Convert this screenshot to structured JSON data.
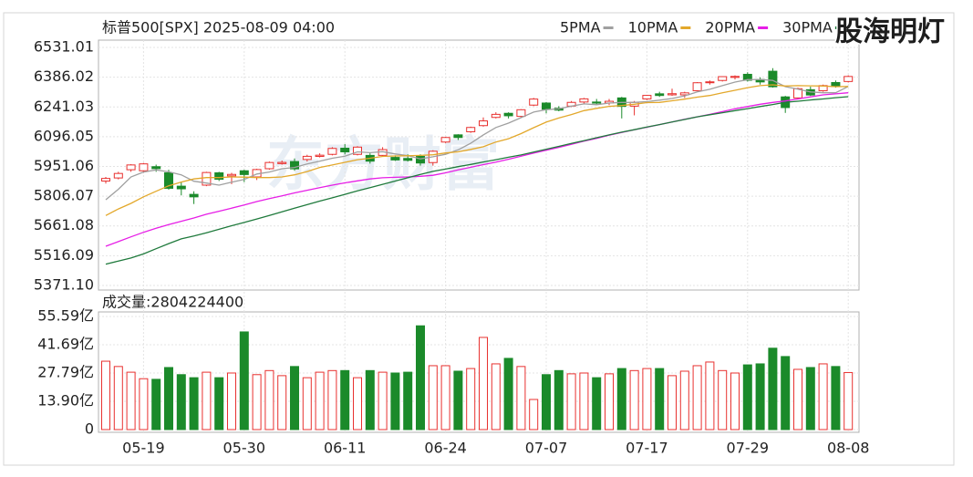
{
  "chart_data": [
    {
      "type": "candlestick",
      "title": "标普500[SPX] 2025-08-09 04:00",
      "watermark": "东方财富",
      "categories": [
        null,
        null,
        null,
        "05-19",
        null,
        null,
        null,
        null,
        null,
        null,
        null,
        "05-30",
        null,
        null,
        null,
        null,
        null,
        null,
        null,
        "06-11",
        null,
        null,
        null,
        null,
        null,
        null,
        null,
        "06-24",
        null,
        null,
        null,
        null,
        null,
        null,
        null,
        "07-07",
        null,
        null,
        null,
        null,
        null,
        null,
        null,
        "07-17",
        null,
        null,
        null,
        null,
        null,
        null,
        null,
        "07-29",
        null,
        null,
        null,
        null,
        null,
        null,
        null,
        "08-08"
      ],
      "open": [
        5880,
        5895,
        5935,
        5930,
        5950,
        5920,
        5855,
        5815,
        5860,
        5920,
        5905,
        5930,
        5900,
        5940,
        5965,
        5975,
        5985,
        6000,
        6010,
        6040,
        6010,
        6005,
        6005,
        5995,
        5990,
        6000,
        5970,
        6070,
        6105,
        6120,
        6150,
        6190,
        6210,
        6195,
        6250,
        6260,
        6235,
        6245,
        6265,
        6265,
        6260,
        6285,
        6245,
        6280,
        6305,
        6300,
        6300,
        6320,
        6360,
        6370,
        6385,
        6400,
        6375,
        6415,
        6290,
        6285,
        6325,
        6320,
        6360,
        6365
      ],
      "high": [
        5900,
        5925,
        5962,
        5968,
        5960,
        5935,
        5875,
        5830,
        5925,
        5925,
        5920,
        5935,
        5940,
        5975,
        5980,
        5990,
        6008,
        6015,
        6045,
        6060,
        6050,
        6015,
        6045,
        6005,
        6010,
        6010,
        6030,
        6095,
        6108,
        6145,
        6190,
        6215,
        6215,
        6230,
        6285,
        6265,
        6245,
        6270,
        6285,
        6280,
        6280,
        6290,
        6270,
        6300,
        6315,
        6330,
        6315,
        6362,
        6370,
        6390,
        6395,
        6410,
        6385,
        6430,
        6295,
        6335,
        6340,
        6350,
        6370,
        6395
      ],
      "low": [
        5868,
        5888,
        5925,
        5920,
        5925,
        5838,
        5810,
        5768,
        5855,
        5880,
        5865,
        5875,
        5885,
        5935,
        5960,
        5930,
        5975,
        5995,
        6005,
        6010,
        6005,
        5965,
        6000,
        5978,
        5975,
        5955,
        5955,
        6065,
        6080,
        6115,
        6145,
        6185,
        6185,
        6190,
        6245,
        6210,
        6220,
        6240,
        6255,
        6250,
        6250,
        6185,
        6200,
        6275,
        6290,
        6295,
        6285,
        6318,
        6350,
        6365,
        6375,
        6365,
        6350,
        6335,
        6212,
        6280,
        6295,
        6315,
        6335,
        6360
      ],
      "close": [
        5892.58,
        5916.93,
        5958.38,
        5963.6,
        5940.46,
        5844.61,
        5842.01,
        5802.82,
        5921.54,
        5888.55,
        5912.17,
        5911.69,
        5935.94,
        5970.37,
        5970.81,
        5939.3,
        6000.36,
        6005.88,
        6038.81,
        6022.24,
        6045.26,
        5976.97,
        6033.11,
        5982.72,
        5980.87,
        5967.84,
        6025.17,
        6092.18,
        6092.16,
        6141.02,
        6173.07,
        6204.95,
        6198.01,
        6227.42,
        6279.35,
        6229.98,
        6225.52,
        6263.26,
        6280.46,
        6259.75,
        6268.56,
        6243.76,
        6263.7,
        6297.36,
        6296.79,
        6305.6,
        6309.62,
        6358.91,
        6363.35,
        6388.64,
        6389.77,
        6370.86,
        6362.9,
        6339.39,
        6238.01,
        6329.94,
        6299.19,
        6345.06,
        6340,
        6389.45
      ],
      "series": [
        {
          "name": "5PMA",
          "color": "#a0a0a0",
          "values": [
            5789,
            5840,
            5900,
            5924,
            5934,
            5925,
            5910,
            5879,
            5870,
            5860,
            5874,
            5888,
            5914,
            5924,
            5940,
            5946,
            5963,
            5977,
            5991,
            6001,
            6022,
            6018,
            6023,
            6012,
            6004,
            5988,
            5998,
            6010,
            6032,
            6064,
            6105,
            6141,
            6162,
            6189,
            6216,
            6228,
            6232,
            6245,
            6256,
            6252,
            6260,
            6263,
            6263,
            6267,
            6274,
            6282,
            6295,
            6314,
            6327,
            6345,
            6362,
            6374,
            6375,
            6370,
            6340,
            6328,
            6314,
            6310,
            6310,
            6341
          ]
        },
        {
          "name": "10PMA",
          "color": "#e3a82b",
          "values": [
            5712,
            5744,
            5771,
            5803,
            5830,
            5857,
            5875,
            5890,
            5897,
            5897,
            5900,
            5899,
            5897,
            5897,
            5900,
            5910,
            5926,
            5946,
            5958,
            5971,
            5984,
            5991,
            6000,
            6002,
            6003,
            6005,
            6008,
            6017,
            6022,
            6034,
            6047,
            6070,
            6086,
            6111,
            6140,
            6167,
            6187,
            6204,
            6223,
            6234,
            6244,
            6248,
            6254,
            6262,
            6263,
            6271,
            6279,
            6289,
            6297,
            6310,
            6322,
            6335,
            6345,
            6349,
            6343,
            6345,
            6344,
            6343,
            6340,
            6341
          ]
        },
        {
          "name": "20PMA",
          "color": "#e61ee6",
          "values": [
            5562,
            5585,
            5608,
            5630,
            5650,
            5668,
            5684,
            5700,
            5718,
            5733,
            5748,
            5763,
            5780,
            5794,
            5808,
            5822,
            5835,
            5848,
            5860,
            5871,
            5881,
            5890,
            5896,
            5898,
            5900,
            5903,
            5908,
            5920,
            5934,
            5947,
            5960,
            5972,
            5986,
            6001,
            6016,
            6030,
            6044,
            6059,
            6074,
            6088,
            6103,
            6117,
            6130,
            6142,
            6155,
            6168,
            6181,
            6193,
            6205,
            6218,
            6232,
            6243,
            6254,
            6263,
            6270,
            6280,
            6290,
            6300,
            6305,
            6310
          ]
        },
        {
          "name": "30PMA",
          "color": "#1f7a3c",
          "values": [
            5475,
            5490,
            5505,
            5525,
            5550,
            5575,
            5598,
            5612,
            5628,
            5645,
            5662,
            5678,
            5695,
            5712,
            5730,
            5748,
            5765,
            5782,
            5798,
            5815,
            5832,
            5848,
            5864,
            5880,
            5896,
            5912,
            5927,
            5938,
            5950,
            5961,
            5973,
            5984,
            5996,
            6007,
            6021,
            6035,
            6049,
            6063,
            6077,
            6091,
            6105,
            6118,
            6130,
            6143,
            6155,
            6168,
            6180,
            6193,
            6203,
            6213,
            6223,
            6233,
            6243,
            6253,
            6264,
            6269,
            6275,
            6280,
            6286,
            6291
          ]
        }
      ],
      "up_color": "#e8312f",
      "down_color": "#1b8a2a",
      "ylim": [
        5371.1,
        6531.01
      ],
      "yticks": [
        6531.01,
        6386.02,
        6241.03,
        6096.05,
        5951.06,
        5806.07,
        5661.08,
        5516.09,
        {
          "value": 5371.1,
          "label": "5371.10"
        }
      ],
      "grid": true,
      "legend": "top-right"
    },
    {
      "type": "bar",
      "title": "成交量:2804224400",
      "values": [
        33.6,
        31,
        28.2,
        25,
        24.7,
        30.5,
        27,
        25.5,
        28.2,
        25.5,
        27.8,
        48,
        27,
        29,
        26.5,
        31,
        25.5,
        28.2,
        29,
        29,
        25.5,
        29,
        28.2,
        27.8,
        28.2,
        51,
        31.4,
        31.4,
        28.7,
        30,
        45.3,
        32.3,
        35,
        31,
        14.8,
        27,
        29,
        27.4,
        27.8,
        25.5,
        27.4,
        30,
        29,
        30,
        30,
        26.5,
        28.7,
        31.4,
        33.2,
        29,
        27.8,
        31.8,
        32.3,
        40,
        35.9,
        29.6,
        30.5,
        32.3,
        31,
        28.04
      ],
      "ylim": [
        0,
        55.59
      ],
      "yticks": [
        {
          "value": 55.59,
          "label": "55.59亿"
        },
        {
          "value": 41.69,
          "label": "41.69亿"
        },
        {
          "value": 27.79,
          "label": "27.79亿"
        },
        {
          "value": 13.9,
          "label": "13.90亿"
        },
        0
      ],
      "grid": true
    }
  ],
  "badge": "股海明灯"
}
